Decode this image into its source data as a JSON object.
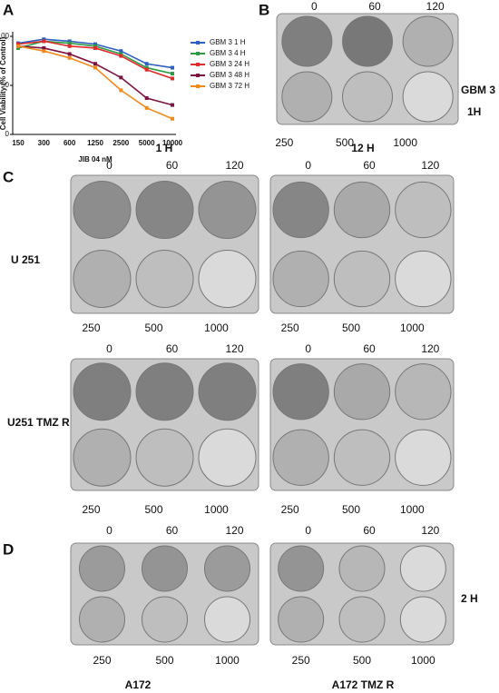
{
  "chart_data": {
    "type": "line",
    "y_label": "Cell Viability (% of Control)",
    "x_label": "JIB 04 nM",
    "categories": [
      "150",
      "300",
      "600",
      "1250",
      "2500",
      "5000",
      "10000"
    ],
    "ylim": [
      0,
      100
    ],
    "yticks": [
      0,
      50,
      100
    ],
    "series": [
      {
        "name": "GBM 3 1 H",
        "color": "#2f5fbf",
        "values": [
          93,
          97,
          95,
          92,
          85,
          72,
          68
        ]
      },
      {
        "name": "GBM 3 4 H",
        "color": "#2e9a48",
        "values": [
          88,
          95,
          93,
          90,
          82,
          68,
          62
        ]
      },
      {
        "name": "GBM 3 24 H",
        "color": "#e02b2b",
        "values": [
          92,
          95,
          90,
          88,
          80,
          66,
          57
        ]
      },
      {
        "name": "GBM 3 48 H",
        "color": "#7a1440",
        "values": [
          90,
          88,
          82,
          72,
          58,
          37,
          30
        ]
      },
      {
        "name": "GBM 3 72 H",
        "color": "#f08a1c",
        "values": [
          90,
          85,
          78,
          68,
          45,
          27,
          16
        ]
      }
    ]
  },
  "panel_labels": [
    "A",
    "B",
    "C",
    "D"
  ],
  "labels": {
    "gbm3": "GBM 3",
    "b_time": "1H",
    "c_1h": "1 H",
    "c_12h": "12 H",
    "u251": "U 251",
    "u251_tmz": "U251 TMZ R",
    "d_time": "2 H",
    "a172": "A172",
    "a172_tmz": "A172 TMZ R"
  },
  "plates": [
    {
      "top_labels": [
        0,
        60,
        120
      ],
      "bottom_labels": [
        250,
        500,
        1000
      ]
    },
    {
      "top_labels": [
        0,
        60,
        120
      ],
      "bottom_labels": [
        250,
        500,
        1000
      ]
    },
    {
      "top_labels": [
        0,
        60,
        120
      ],
      "bottom_labels": [
        250,
        500,
        1000
      ]
    },
    {
      "top_labels": [
        0,
        60,
        120
      ],
      "bottom_labels": [
        250,
        500,
        1000
      ]
    },
    {
      "top_labels": [
        0,
        60,
        120
      ],
      "bottom_labels": [
        250,
        500,
        1000
      ]
    },
    {
      "top_labels": [
        0,
        60,
        120
      ],
      "bottom_labels": [
        250,
        500,
        1000
      ]
    },
    {
      "top_labels": [
        0,
        60,
        120
      ],
      "bottom_labels": [
        250,
        500,
        1000
      ]
    }
  ]
}
